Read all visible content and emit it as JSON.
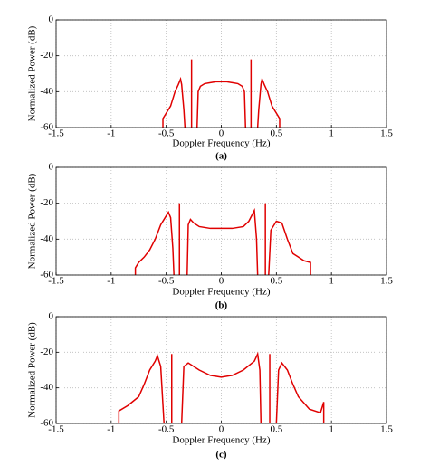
{
  "chart_data": [
    {
      "type": "line",
      "caption": "(a)",
      "xlabel": "Doppler Frequency (Hz)",
      "ylabel": "Normalized Power (dB)",
      "xlim": [
        -1.5,
        1.5
      ],
      "ylim": [
        -60,
        0
      ],
      "xticks": [
        -1.5,
        -1,
        -0.5,
        0,
        0.5,
        1,
        1.5
      ],
      "yticks": [
        0,
        -20,
        -40,
        -60
      ],
      "grid": true,
      "series": [
        {
          "color": "#e00000",
          "x": [
            -0.53,
            -0.53,
            -0.5,
            -0.46,
            -0.42,
            -0.39,
            -0.37,
            -0.36,
            -0.34,
            -0.33,
            -0.3,
            -0.27,
            -0.27,
            -0.25,
            -0.22,
            -0.21,
            -0.19,
            -0.15,
            -0.1,
            -0.05,
            0,
            0.05,
            0.1,
            0.15,
            0.19,
            0.21,
            0.22,
            0.25,
            0.27,
            0.27,
            0.3,
            0.33,
            0.34,
            0.36,
            0.37,
            0.39,
            0.42,
            0.46,
            0.5,
            0.53,
            0.53
          ],
          "values": [
            -60,
            -55,
            -52,
            -48,
            -40,
            -36,
            -33,
            -36,
            -50,
            -60,
            null,
            -60,
            -22,
            null,
            -60,
            -40,
            -37,
            -35.5,
            -35,
            -34.5,
            -34.5,
            -34.5,
            -35,
            -35.5,
            -37,
            -40,
            -60,
            null,
            -22,
            -60,
            null,
            -60,
            -50,
            -36,
            -33,
            -36,
            -40,
            -48,
            -52,
            -55,
            -60
          ]
        }
      ]
    },
    {
      "type": "line",
      "caption": "(b)",
      "xlabel": "Doppler Frequency (Hz)",
      "ylabel": "Normalized Power (dB)",
      "xlim": [
        -1.5,
        1.5
      ],
      "ylim": [
        -60,
        0
      ],
      "xticks": [
        -1.5,
        -1,
        -0.5,
        0,
        0.5,
        1,
        1.5
      ],
      "yticks": [
        0,
        -20,
        -40,
        -60
      ],
      "grid": true,
      "series": [
        {
          "color": "#e00000",
          "x": [
            -0.78,
            -0.78,
            -0.75,
            -0.7,
            -0.65,
            -0.6,
            -0.55,
            -0.5,
            -0.48,
            -0.46,
            -0.44,
            -0.43,
            -0.4,
            -0.38,
            -0.38,
            -0.35,
            -0.31,
            -0.3,
            -0.28,
            -0.25,
            -0.2,
            -0.1,
            0,
            0.1,
            0.2,
            0.25,
            0.3,
            0.32,
            0.33,
            0.36,
            0.4,
            0.4,
            0.42,
            0.43,
            0.45,
            0.5,
            0.55,
            0.6,
            0.65,
            0.7,
            0.75,
            0.81,
            0.81
          ],
          "values": [
            -60,
            -56,
            -53,
            -50,
            -46,
            -40,
            -32,
            -27,
            -25,
            -28,
            -45,
            -60,
            null,
            -60,
            -20,
            null,
            -60,
            -32,
            -29,
            -31,
            -33,
            -34,
            -34,
            -34,
            -33,
            -30,
            -24,
            -40,
            -60,
            null,
            -20,
            -60,
            null,
            -60,
            -35,
            -30,
            -31,
            -40,
            -48,
            -50,
            -52,
            -53,
            -60
          ]
        }
      ]
    },
    {
      "type": "line",
      "caption": "(c)",
      "xlabel": "Doppler Frequency (Hz)",
      "ylabel": "Normalized Power (dB)",
      "xlim": [
        -1.5,
        1.5
      ],
      "ylim": [
        -60,
        0
      ],
      "xticks": [
        -1.5,
        -1,
        -0.5,
        0,
        0.5,
        1,
        1.5
      ],
      "yticks": [
        0,
        -20,
        -40,
        -60
      ],
      "grid": true,
      "series": [
        {
          "color": "#e00000",
          "x": [
            -0.93,
            -0.93,
            -0.85,
            -0.75,
            -0.7,
            -0.65,
            -0.6,
            -0.58,
            -0.55,
            -0.52,
            -0.48,
            -0.45,
            -0.45,
            -0.4,
            -0.36,
            -0.34,
            -0.3,
            -0.2,
            -0.1,
            0,
            0.1,
            0.2,
            0.3,
            0.33,
            0.35,
            0.36,
            0.4,
            0.44,
            0.44,
            0.47,
            0.5,
            0.52,
            0.55,
            0.6,
            0.65,
            0.7,
            0.8,
            0.9,
            0.93,
            0.93
          ],
          "values": [
            -60,
            -53,
            -50,
            -45,
            -38,
            -30,
            -25,
            -22,
            -28,
            -60,
            null,
            -60,
            -21,
            null,
            -60,
            -28,
            -26,
            -30,
            -33,
            -34,
            -33,
            -30,
            -25,
            -21,
            -30,
            -60,
            null,
            -21,
            -60,
            null,
            -60,
            -30,
            -26,
            -30,
            -38,
            -45,
            -52,
            -54,
            -48,
            -60
          ]
        }
      ]
    }
  ]
}
